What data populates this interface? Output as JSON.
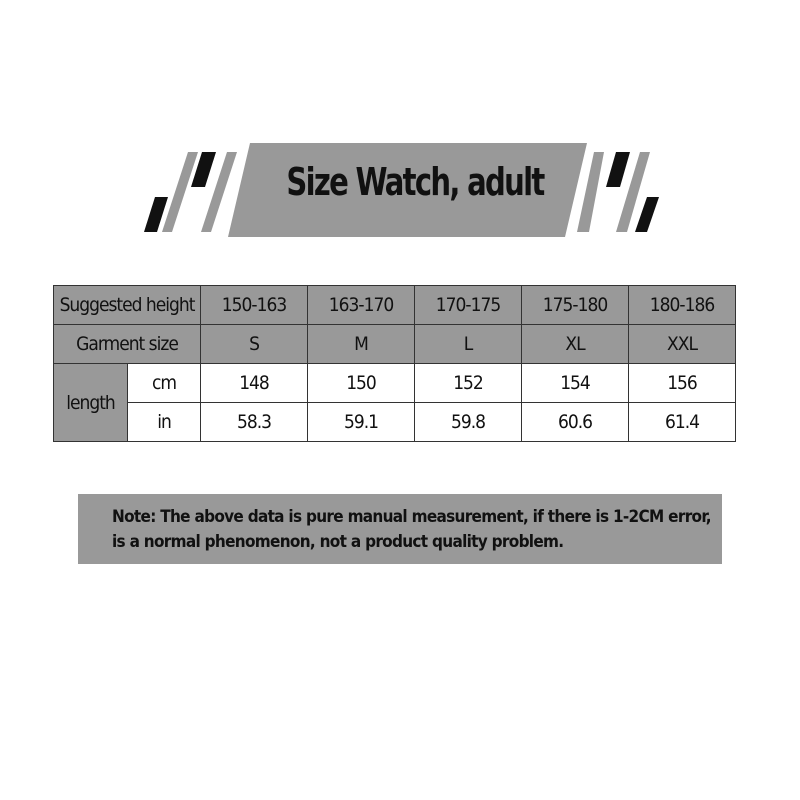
{
  "title": "Size Watch, adult",
  "table": {
    "row_height_label": "Suggested height",
    "heights": [
      "150-163",
      "163-170",
      "170-175",
      "175-180",
      "180-186"
    ],
    "row_size_label": "Garment size",
    "sizes": [
      "S",
      "M",
      "L",
      "XL",
      "XXL"
    ],
    "length_label": "length",
    "cm_label": "cm",
    "cm": [
      "148",
      "150",
      "152",
      "154",
      "156"
    ],
    "in_label": "in",
    "in": [
      "58.3",
      "59.1",
      "59.8",
      "60.6",
      "61.4"
    ]
  },
  "note": {
    "line1": "Note: The above data is pure manual measurement, if there is 1-2CM error,",
    "line2": "is a normal phenomenon, not a product quality problem."
  },
  "colors": {
    "gray": "#999999",
    "black": "#111111"
  }
}
